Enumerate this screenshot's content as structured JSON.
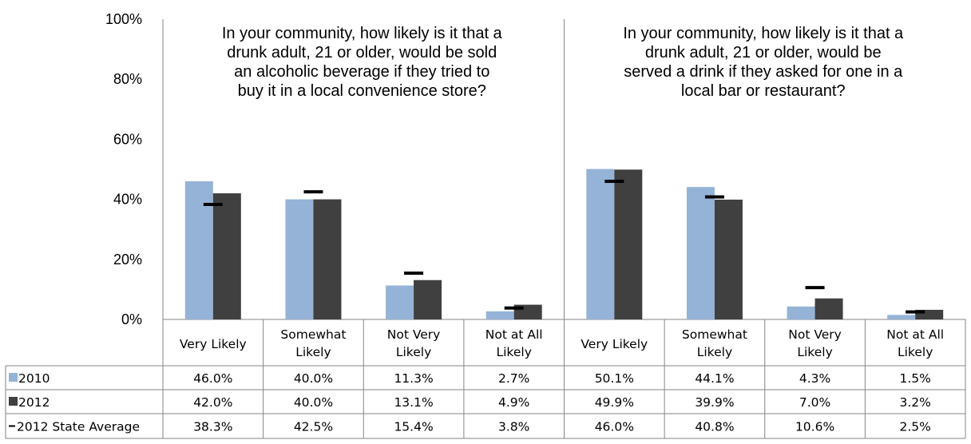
{
  "chart_data": {
    "type": "bar",
    "ylim": [
      0,
      100
    ],
    "yticks": [
      "0%",
      "20%",
      "40%",
      "60%",
      "80%",
      "100%"
    ],
    "colors": {
      "2010": "#95b3d7",
      "2012": "#404040",
      "state_avg": "#000000"
    },
    "panels": [
      {
        "title": [
          "In your community, how likely is it that a",
          "drunk adult, 21 or older, would be sold",
          "an alcoholic beverage if they tried to",
          "buy it in a local convenience store?"
        ],
        "categories": [
          [
            "Very Likely"
          ],
          [
            "Somewhat",
            "Likely"
          ],
          [
            "Not Very",
            "Likely"
          ],
          [
            "Not at All",
            "Likely"
          ]
        ]
      },
      {
        "title": [
          "In your community, how likely is it that a",
          "drunk adult, 21 or older, would be",
          "served a drink if they asked for one in a",
          "local bar or restaurant?"
        ],
        "categories": [
          [
            "Very Likely"
          ],
          [
            "Somewhat",
            "Likely"
          ],
          [
            "Not Very",
            "Likely"
          ],
          [
            "Not at All",
            "Likely"
          ]
        ]
      }
    ],
    "series": [
      {
        "name": "2010",
        "marker": "bar",
        "values": [
          46.0,
          40.0,
          11.3,
          2.7,
          50.1,
          44.1,
          4.3,
          1.5
        ],
        "labels": [
          "46.0%",
          "40.0%",
          "11.3%",
          "2.7%",
          "50.1%",
          "44.1%",
          "4.3%",
          "1.5%"
        ]
      },
      {
        "name": "2012",
        "marker": "bar",
        "values": [
          42.0,
          40.0,
          13.1,
          4.9,
          49.9,
          39.9,
          7.0,
          3.2
        ],
        "labels": [
          "42.0%",
          "40.0%",
          "13.1%",
          "4.9%",
          "49.9%",
          "39.9%",
          "7.0%",
          "3.2%"
        ]
      },
      {
        "name": "2012 State Average",
        "marker": "dash",
        "values": [
          38.3,
          42.5,
          15.4,
          3.8,
          46.0,
          40.8,
          10.6,
          2.5
        ],
        "labels": [
          "38.3%",
          "42.5%",
          "15.4%",
          "3.8%",
          "46.0%",
          "40.8%",
          "10.6%",
          "2.5%"
        ]
      }
    ]
  }
}
